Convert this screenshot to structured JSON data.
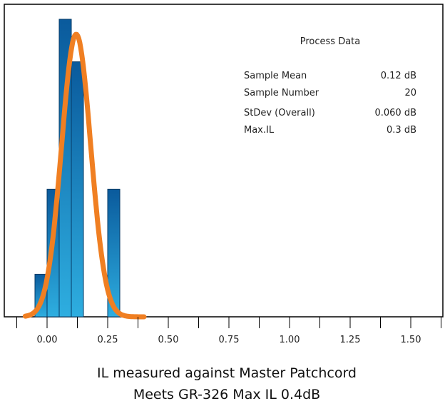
{
  "chart_data": {
    "type": "bar",
    "subtype": "histogram",
    "bin_width": 0.05,
    "bins": [
      {
        "x_start": -0.05,
        "x_end": 0.0,
        "count": 1
      },
      {
        "x_start": 0.0,
        "x_end": 0.05,
        "count": 3
      },
      {
        "x_start": 0.05,
        "x_end": 0.1,
        "count": 7
      },
      {
        "x_start": 0.1,
        "x_end": 0.15,
        "count": 6
      },
      {
        "x_start": 0.15,
        "x_end": 0.2,
        "count": 0
      },
      {
        "x_start": 0.2,
        "x_end": 0.25,
        "count": 0
      },
      {
        "x_start": 0.25,
        "x_end": 0.3,
        "count": 3
      }
    ],
    "ylim": [
      0,
      7.2
    ],
    "xlim": [
      -0.17,
      1.63
    ],
    "xticks": [
      "0.00",
      "0.25",
      "0.50",
      "0.75",
      "1.00",
      "1.25",
      "1.50"
    ],
    "xtick_values": [
      0,
      0.25,
      0.5,
      0.75,
      1.0,
      1.25,
      1.5
    ],
    "fit_curve": {
      "type": "normal",
      "mean": 0.12,
      "stdev": 0.06,
      "x_range": [
        -0.09,
        0.4
      ],
      "color": "#f07f22"
    },
    "bar_color_top": "#0a5a9c",
    "bar_color_bottom": "#2eaee0",
    "grid": false,
    "process_data": {
      "title": "Process Data",
      "rows": [
        {
          "label": "Sample Mean",
          "value": "0.12 dB"
        },
        {
          "label": "Sample Number",
          "value": "20"
        },
        {
          "label": "StDev (Overall)",
          "value": "0.060 dB"
        },
        {
          "label": "Max.IL",
          "value": "0.3 dB"
        }
      ]
    }
  },
  "caption": {
    "line1": "IL measured against Master Patchcord",
    "line2": "Meets GR-326 Max IL 0.4dB"
  }
}
